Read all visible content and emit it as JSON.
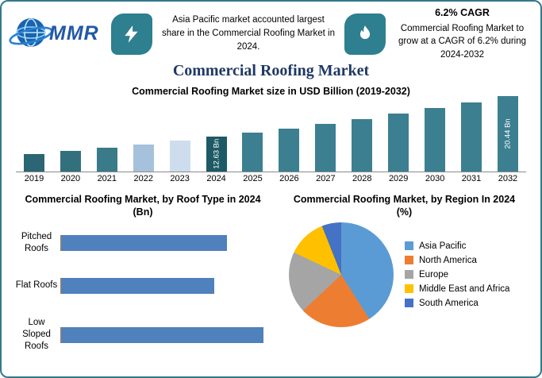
{
  "header": {
    "logo_text": "MMR",
    "left_note": "Asia Pacific market accounted largest share in the Commercial Roofing Market in 2024.",
    "cagr_title": "6.2% CAGR",
    "right_note": "Commercial Roofing Market to grow at a CAGR of 6.2% during 2024-2032",
    "badge_color": "#2e7f90"
  },
  "title": "Commercial Roofing Market",
  "chart_data": [
    {
      "type": "bar",
      "title": "Commercial Roofing Market size in USD Billion (2019-2032)",
      "ylabel": "USD Billion",
      "categories": [
        "2019",
        "2020",
        "2021",
        "2022",
        "2023",
        "2024",
        "2025",
        "2026",
        "2027",
        "2028",
        "2029",
        "2030",
        "2031",
        "2032"
      ],
      "values": [
        9.35,
        9.93,
        10.54,
        11.2,
        11.89,
        12.63,
        13.41,
        14.24,
        15.13,
        16.06,
        17.06,
        18.12,
        19.24,
        20.44
      ],
      "bar_labels": {
        "2024": "12.63 Bn",
        "2032": "20.44 Bn"
      },
      "colors": [
        "#2c6573",
        "#33707e",
        "#3a7b8a",
        "#a6c1dc",
        "#cddded",
        "#1d5a66",
        "#3c7f91",
        "#3c7f91",
        "#3c7f91",
        "#3c7f91",
        "#3c7f91",
        "#3c7f91",
        "#3c7f91",
        "#3c7f91"
      ],
      "ylim": [
        6,
        21
      ],
      "grid": false,
      "legend_position": "none"
    },
    {
      "type": "bar-horizontal",
      "title": "Commercial Roofing Market, by Roof Type in 2024 (Bn)",
      "categories": [
        "Pitched Roofs",
        "Flat Roofs",
        "Low Sloped Roofs"
      ],
      "values": [
        4.0,
        3.7,
        4.9
      ],
      "xlim": [
        0,
        5.2
      ],
      "color": "#4f81bd",
      "grid": false,
      "legend_position": "none"
    },
    {
      "type": "pie",
      "title": "Commercial Roofing Market, by Region In 2024 (%)",
      "labels": [
        "Asia Pacific",
        "North America",
        "Europe",
        "Middle East and Africa",
        "South America"
      ],
      "values": [
        41,
        22,
        19,
        12,
        6
      ],
      "colors": [
        "#5b9bd5",
        "#ed7d31",
        "#a5a5a5",
        "#ffc000",
        "#4472c4"
      ],
      "legend_position": "right"
    }
  ]
}
